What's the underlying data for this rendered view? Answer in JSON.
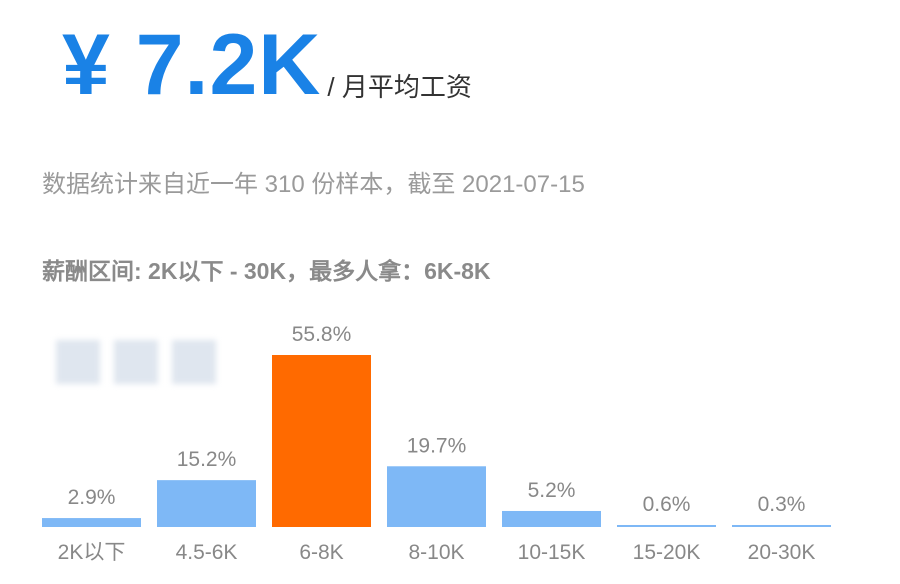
{
  "hero": {
    "amount": "¥ 7.2K",
    "unit": "/ 月平均工资"
  },
  "subtitle": "数据统计来自近一年 310 份样本，截至 2021-07-15",
  "range_text": "薪酬区间: 2K以下 - 30K，最多人拿：6K-8K",
  "colors": {
    "accent": "#1a82e6",
    "bar": "#7eb8f6",
    "highlight": "#ff6a00"
  },
  "chart_data": {
    "type": "bar",
    "categories": [
      "2K以下",
      "4.5-6K",
      "6-8K",
      "8-10K",
      "10-15K",
      "15-20K",
      "20-30K"
    ],
    "values": [
      2.9,
      15.2,
      55.8,
      19.7,
      5.2,
      0.6,
      0.3
    ],
    "value_labels": [
      "2.9%",
      "15.2%",
      "55.8%",
      "19.7%",
      "5.2%",
      "0.6%",
      "0.3%"
    ],
    "highlight_index": 2,
    "title": "",
    "xlabel": "",
    "ylabel": "",
    "ylim": [
      0,
      55.8
    ],
    "grid": false,
    "legend": "none"
  }
}
